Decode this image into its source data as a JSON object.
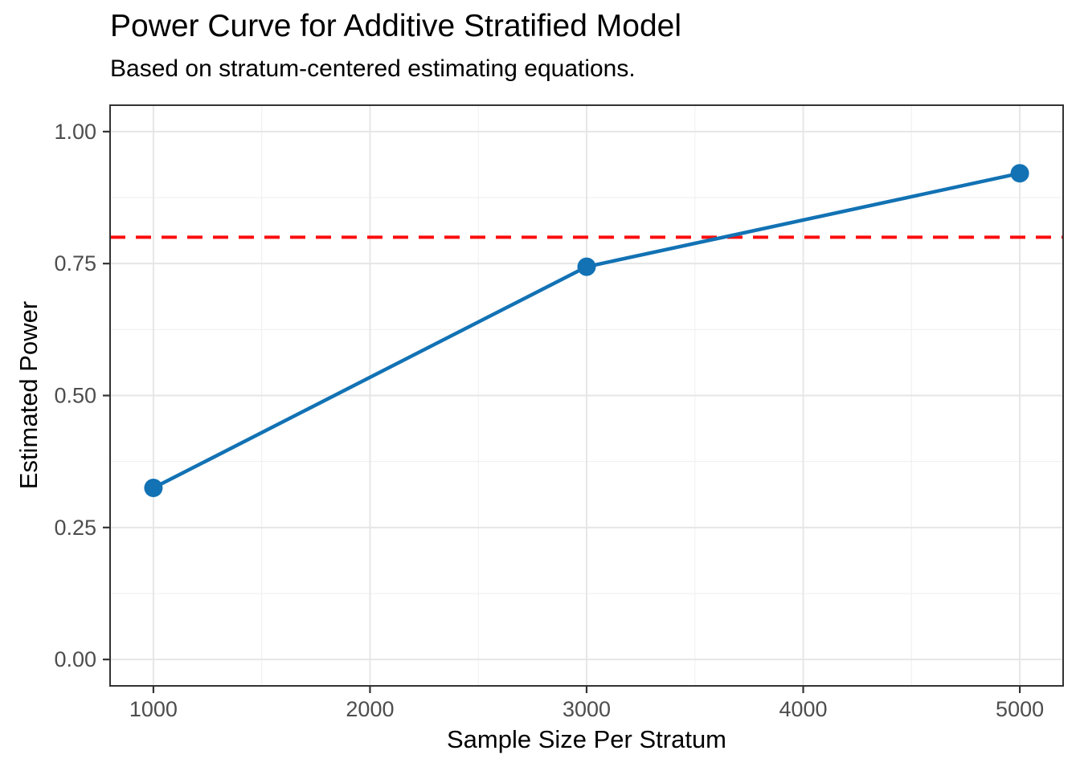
{
  "header": {
    "title": "Power Curve for Additive Stratified Model",
    "subtitle": "Based on stratum-centered estimating equations."
  },
  "chart_data": {
    "type": "line",
    "title": "Power Curve for Additive Stratified Model",
    "subtitle": "Based on stratum-centered estimating equations.",
    "xlabel": "Sample Size Per Stratum",
    "ylabel": "Estimated Power",
    "x": [
      1000,
      3000,
      5000
    ],
    "series": [
      {
        "name": "Estimated Power",
        "values": [
          0.325,
          0.744,
          0.921
        ]
      }
    ],
    "reference_line": {
      "y": 0.8,
      "style": "dashed"
    },
    "xlim": [
      800,
      5200
    ],
    "ylim": [
      -0.05,
      1.05
    ],
    "x_ticks": [
      1000,
      2000,
      3000,
      4000,
      5000
    ],
    "x_tick_labels": [
      "1000",
      "2000",
      "3000",
      "4000",
      "5000"
    ],
    "y_ticks": [
      0,
      0.25,
      0.5,
      0.75,
      1.0
    ],
    "y_tick_labels": [
      "0.00",
      "0.25",
      "0.50",
      "0.75",
      "1.00"
    ],
    "x_minor_ticks": [
      1500,
      2500,
      3500,
      4500
    ],
    "y_minor_ticks": [
      0.125,
      0.375,
      0.625,
      0.875
    ],
    "grid": true,
    "legend_position": "none",
    "colors": {
      "line": "#1272b4",
      "point": "#1272b4",
      "reference": "#fb0d0d",
      "grid_major": "#e6e6e6",
      "grid_minor": "#f1f1f1",
      "panel_border": "#333333",
      "tick_mark": "#333333",
      "tick_label": "#4d4d4d",
      "text": "#000000",
      "panel_background": "#ffffff"
    }
  }
}
